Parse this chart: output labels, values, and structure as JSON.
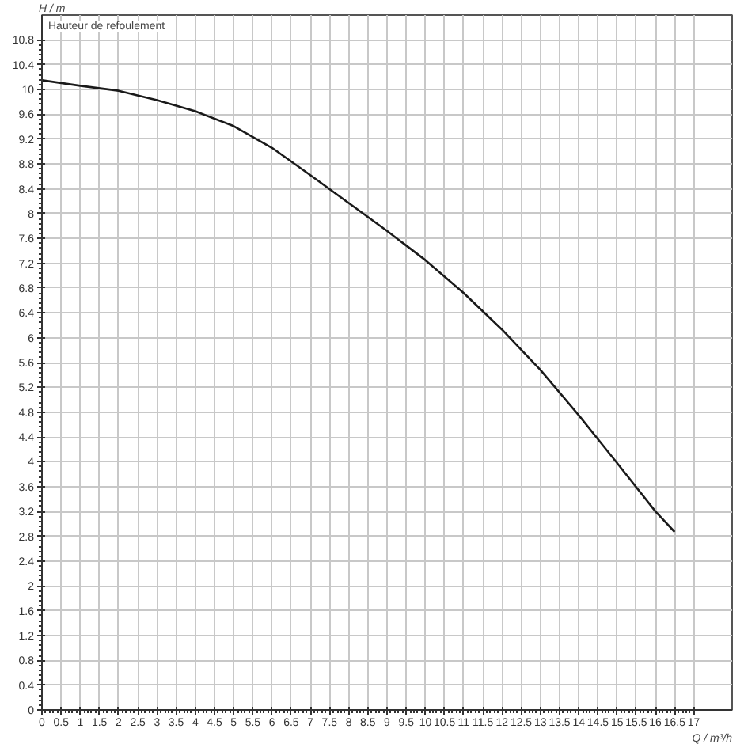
{
  "chart_data": {
    "type": "line",
    "xlabel": "Q / m³/h",
    "ylabel": "H / m",
    "annotations": [
      "Hauteur de refoulement"
    ],
    "x": [
      0,
      1,
      2,
      3,
      4,
      5,
      6,
      7,
      8,
      9,
      10,
      11,
      12,
      13,
      14,
      15,
      16,
      16.5
    ],
    "series": [
      {
        "color": "#1a1a1a",
        "values": [
          10.15,
          10.06,
          9.98,
          9.83,
          9.65,
          9.41,
          9.06,
          8.62,
          8.17,
          7.72,
          7.25,
          6.72,
          6.13,
          5.48,
          4.75,
          3.98,
          3.2,
          2.87
        ]
      }
    ],
    "xlim": [
      0,
      18
    ],
    "ylim": [
      0,
      11.2
    ],
    "xticks": [
      0,
      0.5,
      1,
      1.5,
      2,
      2.5,
      3,
      3.5,
      4,
      4.5,
      5,
      5.5,
      6,
      6.5,
      7,
      7.5,
      8,
      8.5,
      9,
      9.5,
      10,
      10.5,
      11,
      11.5,
      12,
      12.5,
      13,
      13.5,
      14,
      14.5,
      15,
      15.5,
      16,
      16.5,
      17
    ],
    "yticks": [
      0,
      0.4,
      0.8,
      1.2,
      1.6,
      2,
      2.4,
      2.8,
      3.2,
      3.6,
      4,
      4.4,
      4.8,
      5.2,
      5.6,
      6,
      6.4,
      6.8,
      7.2,
      7.6,
      8,
      8.4,
      8.8,
      9.2,
      9.6,
      10,
      10.4,
      10.8
    ],
    "grid": true,
    "marker": "none",
    "line_style": "solid"
  }
}
